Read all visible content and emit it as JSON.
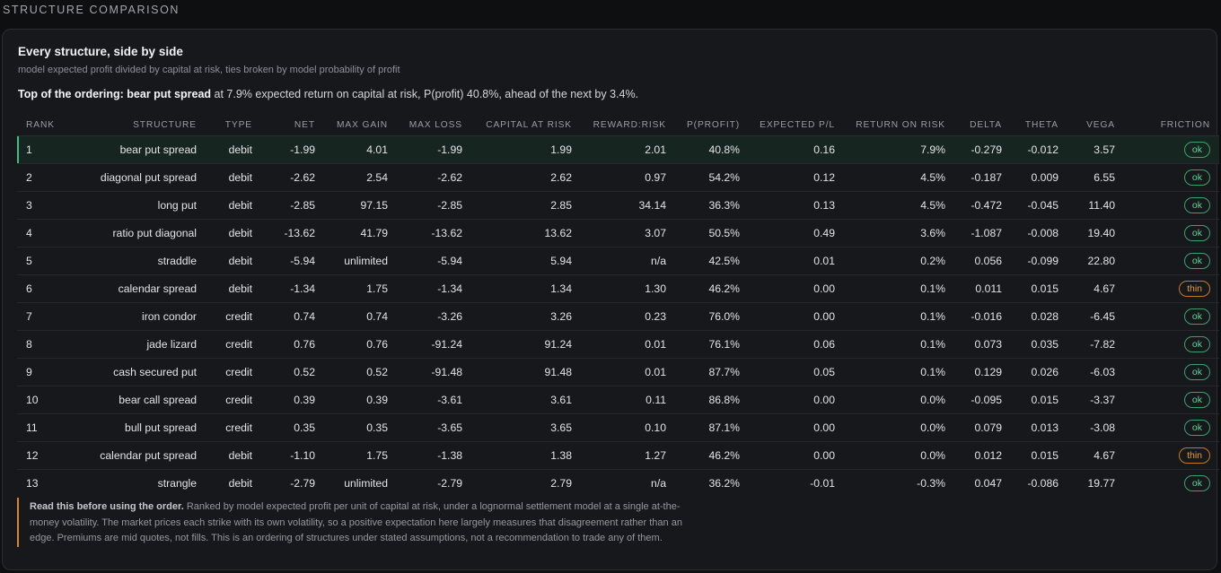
{
  "section": {
    "title": "STRUCTURE COMPARISON"
  },
  "panel": {
    "title": "Every structure, side by side",
    "subtitle": "model expected profit divided by capital at risk, ties broken by model probability of profit",
    "summary_lead": "Top of the ordering: bear put spread",
    "summary_rest": " at 7.9% expected return on capital at risk, P(profit) 40.8%, ahead of the next by 3.4%."
  },
  "table": {
    "columns": [
      "RANK",
      "STRUCTURE",
      "TYPE",
      "NET",
      "MAX GAIN",
      "MAX LOSS",
      "CAPITAL AT RISK",
      "REWARD:RISK",
      "P(PROFIT)",
      "EXPECTED P/L",
      "RETURN ON RISK",
      "DELTA",
      "THETA",
      "VEGA",
      "FRICTION"
    ],
    "rows": [
      [
        "1",
        "bear put spread",
        "debit",
        "-1.99",
        "4.01",
        "-1.99",
        "1.99",
        "2.01",
        "40.8%",
        "0.16",
        "7.9%",
        "-0.279",
        "-0.012",
        "3.57",
        "ok"
      ],
      [
        "2",
        "diagonal put spread",
        "debit",
        "-2.62",
        "2.54",
        "-2.62",
        "2.62",
        "0.97",
        "54.2%",
        "0.12",
        "4.5%",
        "-0.187",
        "0.009",
        "6.55",
        "ok"
      ],
      [
        "3",
        "long put",
        "debit",
        "-2.85",
        "97.15",
        "-2.85",
        "2.85",
        "34.14",
        "36.3%",
        "0.13",
        "4.5%",
        "-0.472",
        "-0.045",
        "11.40",
        "ok"
      ],
      [
        "4",
        "ratio put diagonal",
        "debit",
        "-13.62",
        "41.79",
        "-13.62",
        "13.62",
        "3.07",
        "50.5%",
        "0.49",
        "3.6%",
        "-1.087",
        "-0.008",
        "19.40",
        "ok"
      ],
      [
        "5",
        "straddle",
        "debit",
        "-5.94",
        "unlimited",
        "-5.94",
        "5.94",
        "n/a",
        "42.5%",
        "0.01",
        "0.2%",
        "0.056",
        "-0.099",
        "22.80",
        "ok"
      ],
      [
        "6",
        "calendar spread",
        "debit",
        "-1.34",
        "1.75",
        "-1.34",
        "1.34",
        "1.30",
        "46.2%",
        "0.00",
        "0.1%",
        "0.011",
        "0.015",
        "4.67",
        "thin"
      ],
      [
        "7",
        "iron condor",
        "credit",
        "0.74",
        "0.74",
        "-3.26",
        "3.26",
        "0.23",
        "76.0%",
        "0.00",
        "0.1%",
        "-0.016",
        "0.028",
        "-6.45",
        "ok"
      ],
      [
        "8",
        "jade lizard",
        "credit",
        "0.76",
        "0.76",
        "-91.24",
        "91.24",
        "0.01",
        "76.1%",
        "0.06",
        "0.1%",
        "0.073",
        "0.035",
        "-7.82",
        "ok"
      ],
      [
        "9",
        "cash secured put",
        "credit",
        "0.52",
        "0.52",
        "-91.48",
        "91.48",
        "0.01",
        "87.7%",
        "0.05",
        "0.1%",
        "0.129",
        "0.026",
        "-6.03",
        "ok"
      ],
      [
        "10",
        "bear call spread",
        "credit",
        "0.39",
        "0.39",
        "-3.61",
        "3.61",
        "0.11",
        "86.8%",
        "0.00",
        "0.0%",
        "-0.095",
        "0.015",
        "-3.37",
        "ok"
      ],
      [
        "11",
        "bull put spread",
        "credit",
        "0.35",
        "0.35",
        "-3.65",
        "3.65",
        "0.10",
        "87.1%",
        "0.00",
        "0.0%",
        "0.079",
        "0.013",
        "-3.08",
        "ok"
      ],
      [
        "12",
        "calendar put spread",
        "debit",
        "-1.10",
        "1.75",
        "-1.38",
        "1.38",
        "1.27",
        "46.2%",
        "0.00",
        "0.0%",
        "0.012",
        "0.015",
        "4.67",
        "thin"
      ],
      [
        "13",
        "strangle",
        "debit",
        "-2.79",
        "unlimited",
        "-2.79",
        "2.79",
        "n/a",
        "36.2%",
        "-0.01",
        "-0.3%",
        "0.047",
        "-0.086",
        "19.77",
        "ok"
      ]
    ]
  },
  "note": {
    "lead": "Read this before using the order.",
    "body": " Ranked by model expected profit per unit of capital at risk, under a lognormal settlement model at a single at-the-money volatility. The market prices each strike with its own volatility, so a positive expectation here largely measures that disagreement rather than an edge. Premiums are mid quotes, not fills. This is an ordering of structures under stated assumptions, not a recommendation to trade any of them."
  },
  "colors": {
    "ok": "#63d49a",
    "thin": "#e39a45",
    "top_row_accent": "#3fbf7f",
    "note_accent": "#d8832e"
  }
}
